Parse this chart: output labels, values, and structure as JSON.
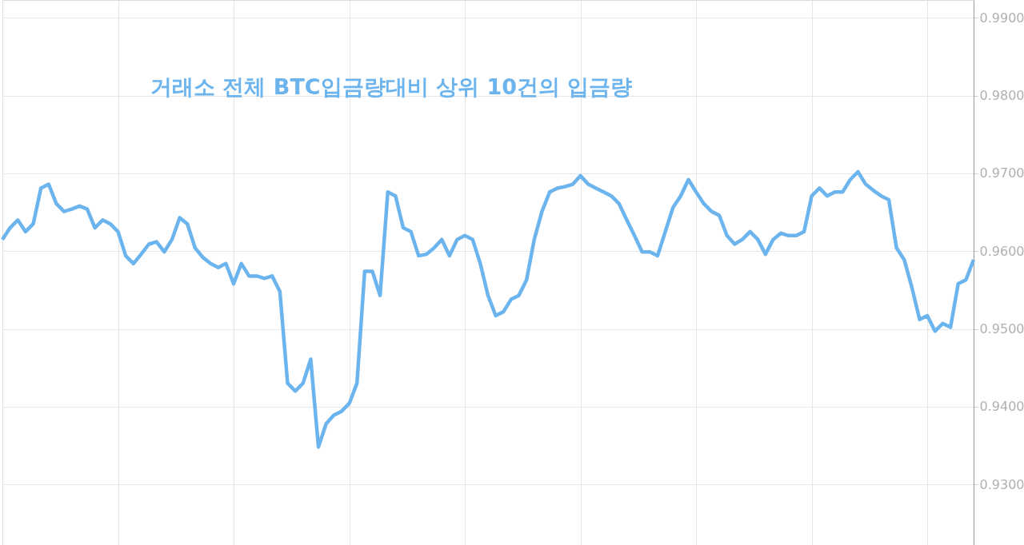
{
  "chart_data": {
    "type": "line",
    "title": "거래소 전체 BTC입금량대비 상위 10건의 입금량",
    "categories": [
      null,
      null,
      null,
      null,
      null,
      null,
      null,
      null,
      null,
      null,
      null,
      null,
      null,
      null,
      null,
      null,
      null,
      null,
      null,
      null,
      null,
      null,
      null,
      null,
      null,
      null,
      null,
      null,
      null,
      null,
      null,
      null,
      null,
      null,
      null,
      null,
      null,
      null,
      null,
      null,
      null,
      null,
      null,
      null,
      null,
      null,
      null,
      null,
      null,
      null,
      null,
      null,
      null,
      null,
      null,
      null,
      null,
      null,
      null,
      null,
      null,
      null,
      null,
      null,
      null,
      null,
      null,
      null,
      null,
      null,
      null,
      null,
      null,
      null,
      null,
      null,
      null,
      null,
      null,
      null,
      null,
      null,
      null,
      null,
      null,
      null,
      null,
      null,
      null,
      null,
      null,
      null,
      null,
      null,
      null,
      null,
      null,
      null,
      null,
      null,
      null,
      null,
      null,
      null,
      null,
      null,
      null,
      null,
      null,
      null,
      null,
      null,
      null,
      null,
      null,
      null,
      null,
      null,
      null,
      null,
      null,
      null,
      null,
      null,
      null,
      null,
      null
    ],
    "series": [
      {
        "color": "#6cb4ee",
        "values": [
          0.9615,
          0.963,
          0.964,
          0.9625,
          0.9635,
          0.9681,
          0.9686,
          0.9661,
          0.9651,
          0.9654,
          0.9658,
          0.9654,
          0.963,
          0.964,
          0.9635,
          0.9625,
          0.9594,
          0.9584,
          0.9596,
          0.9609,
          0.9612,
          0.9599,
          0.9615,
          0.9643,
          0.9635,
          0.9604,
          0.9592,
          0.9584,
          0.9579,
          0.9584,
          0.9558,
          0.9584,
          0.9568,
          0.9568,
          0.9565,
          0.9568,
          0.9548,
          0.943,
          0.942,
          0.943,
          0.9461,
          0.9348,
          0.9378,
          0.9389,
          0.9394,
          0.9404,
          0.943,
          0.9574,
          0.9574,
          0.9543,
          0.9676,
          0.9671,
          0.963,
          0.9625,
          0.9594,
          0.9596,
          0.9604,
          0.9615,
          0.9594,
          0.9615,
          0.962,
          0.9615,
          0.9584,
          0.9543,
          0.9517,
          0.9522,
          0.9538,
          0.9543,
          0.9563,
          0.9615,
          0.9651,
          0.9676,
          0.9681,
          0.9683,
          0.9686,
          0.9697,
          0.9686,
          0.9681,
          0.9676,
          0.9671,
          0.9661,
          0.964,
          0.962,
          0.9599,
          0.9599,
          0.9594,
          0.9625,
          0.9656,
          0.9671,
          0.9692,
          0.9676,
          0.9661,
          0.9651,
          0.9646,
          0.962,
          0.9609,
          0.9615,
          0.9625,
          0.9615,
          0.9596,
          0.9615,
          0.9623,
          0.962,
          0.962,
          0.9625,
          0.9671,
          0.9681,
          0.9671,
          0.9676,
          0.9676,
          0.9692,
          0.9702,
          0.9686,
          0.9678,
          0.9671,
          0.9666,
          0.9604,
          0.9589,
          0.9553,
          0.9512,
          0.9517,
          0.9497,
          0.9507,
          0.9502,
          0.9558,
          0.9563,
          0.9589
        ]
      }
    ],
    "ylim": [
      0.9222,
      0.9923
    ],
    "yticks": [
      {
        "value": 0.93,
        "label": "0.9300"
      },
      {
        "value": 0.94,
        "label": "0.9400"
      },
      {
        "value": 0.95,
        "label": "0.9500"
      },
      {
        "value": 0.96,
        "label": "0.9600"
      },
      {
        "value": 0.97,
        "label": "0.9700"
      },
      {
        "value": 0.98,
        "label": "0.9800"
      },
      {
        "value": 0.99,
        "label": "0.9900"
      }
    ],
    "grid": true,
    "tick_labels": "y",
    "marker": "none",
    "line_style": "solid"
  }
}
